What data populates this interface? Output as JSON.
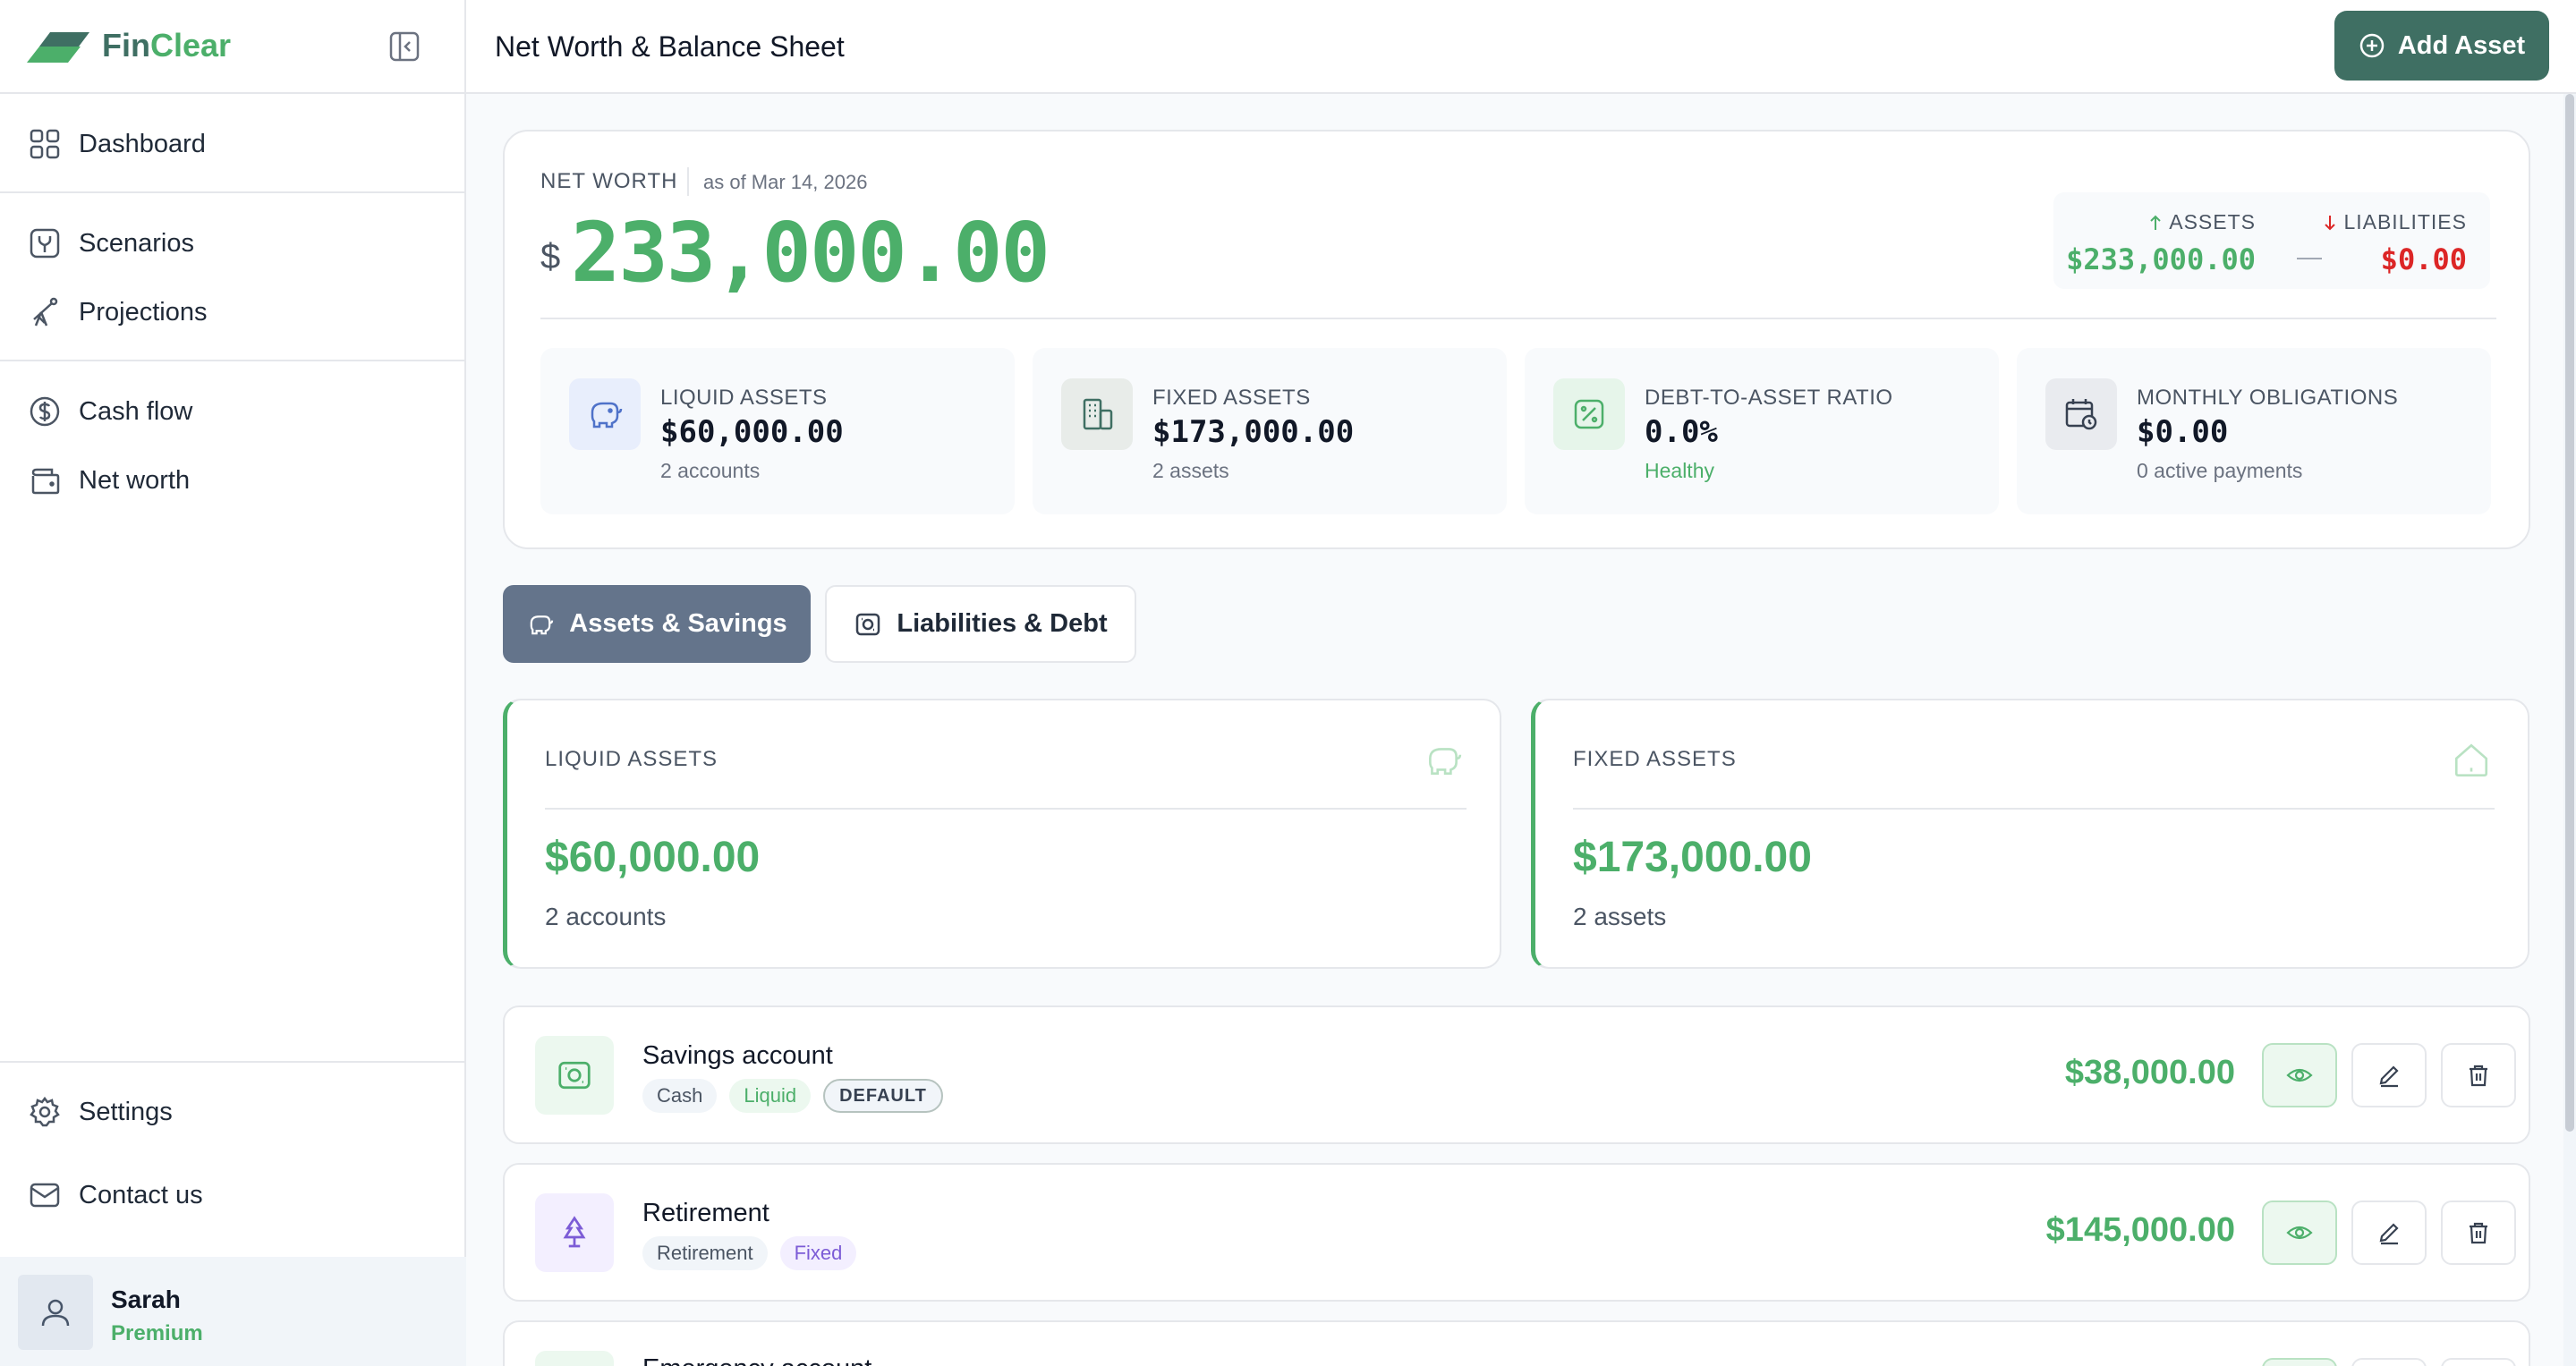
{
  "brand": {
    "name_a": "Fin",
    "name_b": "Clear"
  },
  "sidebar": {
    "items": [
      {
        "label": "Dashboard",
        "icon": "grid-icon"
      },
      {
        "label": "Scenarios",
        "icon": "split-icon"
      },
      {
        "label": "Projections",
        "icon": "telescope-icon"
      },
      {
        "label": "Cash flow",
        "icon": "dollar-circle-icon"
      },
      {
        "label": "Net worth",
        "icon": "wallet-icon"
      }
    ],
    "bottom": [
      {
        "label": "Settings",
        "icon": "gear-icon"
      },
      {
        "label": "Contact us",
        "icon": "mail-icon"
      }
    ],
    "user": {
      "name": "Sarah",
      "plan": "Premium"
    }
  },
  "header": {
    "title": "Net Worth & Balance Sheet",
    "add_button": "Add Asset"
  },
  "net_worth": {
    "label": "NET WORTH",
    "as_of": "as of Mar 14, 2026",
    "currency": "$",
    "value": "233,000.00",
    "assets_label": "ASSETS",
    "assets_value": "$233,000.00",
    "dash": "—",
    "liabilities_label": "LIABILITIES",
    "liabilities_value": "$0.00"
  },
  "stats": [
    {
      "label": "LIQUID ASSETS",
      "value": "$60,000.00",
      "sub": "2 accounts",
      "icon": "piggy-bank-icon"
    },
    {
      "label": "FIXED ASSETS",
      "value": "$173,000.00",
      "sub": "2 assets",
      "icon": "building-icon"
    },
    {
      "label": "DEBT-TO-ASSET RATIO",
      "value": "0.0%",
      "sub": "Healthy",
      "icon": "percent-icon"
    },
    {
      "label": "MONTHLY OBLIGATIONS",
      "value": "$0.00",
      "sub": "0 active payments",
      "icon": "calendar-clock-icon"
    }
  ],
  "tabs": [
    {
      "label": "Assets & Savings",
      "active": true
    },
    {
      "label": "Liabilities & Debt",
      "active": false
    }
  ],
  "summary": [
    {
      "label": "LIQUID ASSETS",
      "value": "$60,000.00",
      "sub": "2 accounts",
      "icon": "piggy-bank-icon"
    },
    {
      "label": "FIXED ASSETS",
      "value": "$173,000.00",
      "sub": "2 assets",
      "icon": "house-icon"
    }
  ],
  "accounts": [
    {
      "name": "Savings account",
      "tags": [
        "Cash",
        "Liquid",
        "DEFAULT"
      ],
      "amount": "$38,000.00",
      "icon": "banknote-icon"
    },
    {
      "name": "Retirement",
      "tags": [
        "Retirement",
        "Fixed"
      ],
      "amount": "$145,000.00",
      "icon": "tree-icon"
    },
    {
      "name": "Emergency account",
      "tags": [],
      "amount": "",
      "icon": "banknote-icon"
    }
  ],
  "colors": {
    "brand_dark": "#3f6f63",
    "positive": "#4caf6a",
    "negative": "#dc2626",
    "tab_active": "#64748b"
  }
}
